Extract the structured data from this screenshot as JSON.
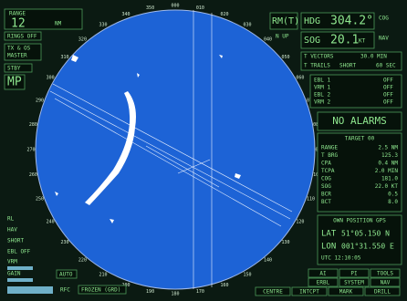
{
  "left_panel": {
    "range_label": "RANGE",
    "range_value": "12",
    "range_unit": "NM",
    "rings": "RINGS OFF",
    "tx": "TX & OS",
    "master": "MASTER",
    "stby": "STBY",
    "mode": "MP"
  },
  "bottom_left": {
    "rl": "RL",
    "hav": "HAV",
    "short": "SHORT",
    "ebl": "EBL OFF",
    "vrm": "VRM",
    "gain": "GAIN",
    "auto": "AUTO",
    "rfc": "RFC",
    "frozen": "FROZEN (GRD)"
  },
  "header": {
    "mode": "RM(T)",
    "stab": "N UP",
    "hdg_label": "HDG",
    "hdg_value": "304.2°",
    "cog": "COG",
    "sog_label": "SOG",
    "sog_value": "20.1",
    "sog_unit": "KT",
    "nav": "NAV"
  },
  "vectors": {
    "label": "T VECTORS",
    "value": "30.0 MIN",
    "trails_label": "T TRAILS",
    "trails_value": "SHORT",
    "trails_time": "60 SEC"
  },
  "ebl_rows": [
    [
      "EBL 1",
      "OFF"
    ],
    [
      "VRM 1",
      "OFF"
    ],
    [
      "EBL 2",
      "OFF"
    ],
    [
      "VRM 2",
      "OFF"
    ]
  ],
  "alarm": "NO ALARMS",
  "target": {
    "title": "TARGET 00",
    "rows": [
      [
        "RANGE",
        "2.5 NM"
      ],
      [
        "T BRG",
        "125.3"
      ],
      [
        "CPA",
        "0.4 NM"
      ],
      [
        "TCPA",
        "2.0 MIN"
      ],
      [
        "COG",
        "181.0"
      ],
      [
        "SOG",
        "22.0 KT"
      ],
      [
        "BCR",
        "0.5"
      ],
      [
        "BCT",
        "8.0"
      ]
    ]
  },
  "own_position": {
    "title": "OWN POSITION GPS",
    "lat_label": "LAT",
    "lat": "51°05.150 N",
    "lon_label": "LON",
    "lon": "001°31.550 E",
    "utc": "UTC 12:10:05"
  },
  "buttons": [
    "AI",
    "PI",
    "TOOLS",
    "ERBL",
    "SYSTEM",
    "NAV",
    "CENTRE",
    "INTCPT",
    "MARK",
    "DRILL"
  ],
  "bearings": [
    "000",
    "010",
    "020",
    "030",
    "040",
    "050",
    "060",
    "070",
    "080",
    "090",
    "100",
    "110",
    "120",
    "130",
    "140",
    "150",
    "160",
    "170",
    "180",
    "190",
    "200",
    "210",
    "220",
    "230",
    "240",
    "250",
    "260",
    "270",
    "280",
    "290",
    "300",
    "310",
    "320",
    "330",
    "340",
    "350"
  ]
}
